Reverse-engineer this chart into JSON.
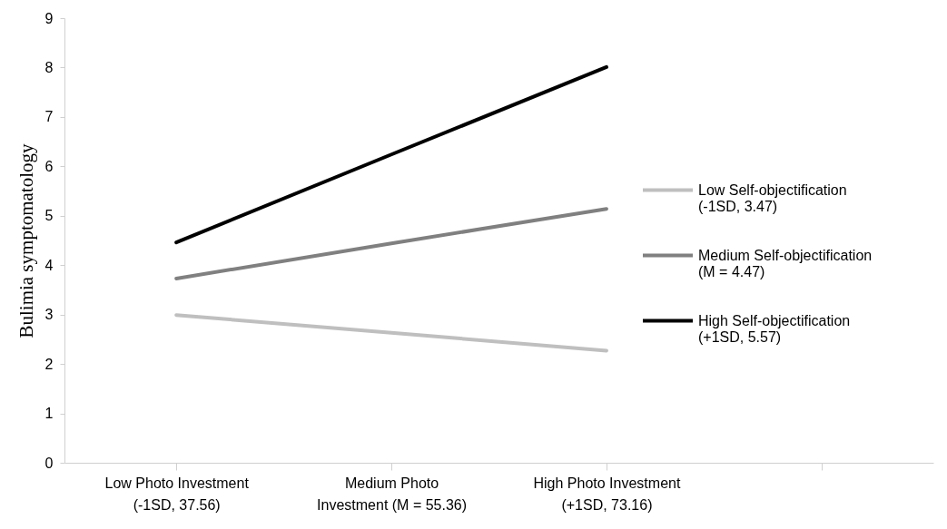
{
  "chart_data": {
    "type": "line",
    "ylabel": "Bulimia symptomatology",
    "categories": [
      "Low Photo Investment\n(-1SD, 37.56)",
      "Medium Photo\nInvestment (M = 55.36)",
      "High Photo Investment\n(+1SD, 73.16)",
      null
    ],
    "series": [
      {
        "name": "Low Self-objectification\n(-1SD, 3.47)",
        "color": "#bfbfbf",
        "values": [
          2.99,
          2.63,
          2.27,
          null
        ]
      },
      {
        "name": "Medium Self-objectification\n(M = 4.47)",
        "color": "#808080",
        "values": [
          3.73,
          4.44,
          5.14,
          null
        ]
      },
      {
        "name": "High Self-objectification\n(+1SD, 5.57)",
        "color": "#000000",
        "values": [
          4.46,
          6.24,
          8.01,
          null
        ]
      }
    ],
    "ylim": [
      0,
      9
    ],
    "yticks": [
      0,
      1,
      2,
      3,
      4,
      5,
      6,
      7,
      8,
      9
    ],
    "legend": "right"
  }
}
